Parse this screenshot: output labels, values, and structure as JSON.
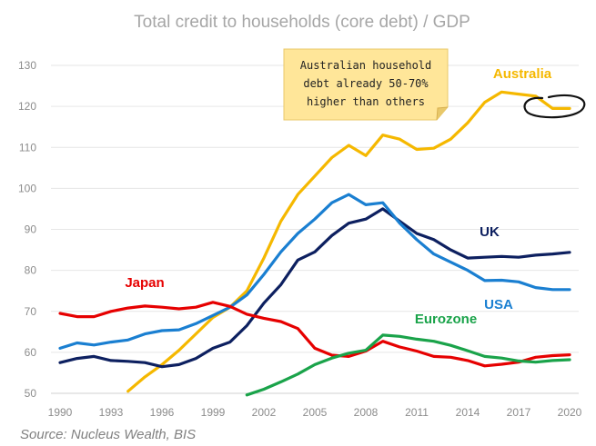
{
  "chart_data": {
    "type": "line",
    "title": "Total credit to households (core debt) / GDP",
    "source": "Source: Nucleus Wealth, BIS",
    "annotation": [
      "Australian household",
      "debt already 50-70%",
      "higher than others"
    ],
    "xlim": [
      1990,
      2020
    ],
    "ylim": [
      50,
      130
    ],
    "x_ticks": [
      "1990",
      "1993",
      "1996",
      "1999",
      "2002",
      "2005",
      "2008",
      "2011",
      "2014",
      "2017",
      "2020"
    ],
    "y_ticks": [
      "50",
      "60",
      "70",
      "80",
      "90",
      "100",
      "110",
      "120",
      "130"
    ],
    "grid": "horizontal",
    "x": [
      1990,
      1991,
      1992,
      1993,
      1994,
      1995,
      1996,
      1997,
      1998,
      1999,
      2000,
      2001,
      2002,
      2003,
      2004,
      2005,
      2006,
      2007,
      2008,
      2009,
      2010,
      2011,
      2012,
      2013,
      2014,
      2015,
      2016,
      2017,
      2018,
      2019,
      2020
    ],
    "series": [
      {
        "name": "Australia",
        "color": "#f5b800",
        "values": [
          null,
          null,
          null,
          null,
          50.5,
          54,
          57,
          60.5,
          64.5,
          68.5,
          71,
          75,
          83,
          92,
          98.5,
          103,
          107.5,
          110.5,
          108,
          113,
          112,
          109.5,
          109.8,
          112,
          116,
          121,
          123.5,
          123,
          122.5,
          119.5,
          119.5
        ]
      },
      {
        "name": "UK",
        "color": "#0d2060",
        "values": [
          57.5,
          58.5,
          59,
          58,
          57.8,
          57.5,
          56.5,
          57,
          58.5,
          61,
          62.5,
          66.5,
          72,
          76.5,
          82.5,
          84.5,
          88.5,
          91.5,
          92.5,
          95,
          92,
          89,
          87.5,
          85,
          83,
          83.2,
          83.4,
          83.2,
          83.7,
          84,
          84.4
        ]
      },
      {
        "name": "USA",
        "color": "#1a7fd1",
        "values": [
          61,
          62.3,
          61.8,
          62.5,
          63,
          64.5,
          65.3,
          65.5,
          67,
          69,
          71,
          74,
          79,
          84.5,
          89,
          92.5,
          96.5,
          98.5,
          96,
          96.5,
          91.5,
          87.5,
          84,
          82,
          80,
          77.5,
          77.6,
          77.2,
          75.8,
          75.3,
          75.3
        ]
      },
      {
        "name": "Japan",
        "color": "#e60000",
        "values": [
          69.5,
          68.7,
          68.7,
          70,
          70.8,
          71.3,
          71,
          70.6,
          71,
          72.2,
          71.2,
          69.3,
          68.3,
          67.5,
          65.8,
          61,
          59.3,
          59,
          60.3,
          62.7,
          61.3,
          60.3,
          59,
          58.8,
          58,
          56.7,
          57.1,
          57.6,
          58.8,
          59.2,
          59.4
        ]
      },
      {
        "name": "Eurozone",
        "color": "#1aa34a",
        "values": [
          null,
          null,
          null,
          null,
          null,
          null,
          null,
          null,
          null,
          null,
          null,
          49.6,
          51,
          52.8,
          54.7,
          57,
          58.6,
          59.8,
          60.5,
          64.2,
          63.9,
          63.2,
          62.7,
          61.7,
          60.4,
          59,
          58.6,
          57.9,
          57.6,
          58,
          58.2
        ]
      }
    ]
  }
}
